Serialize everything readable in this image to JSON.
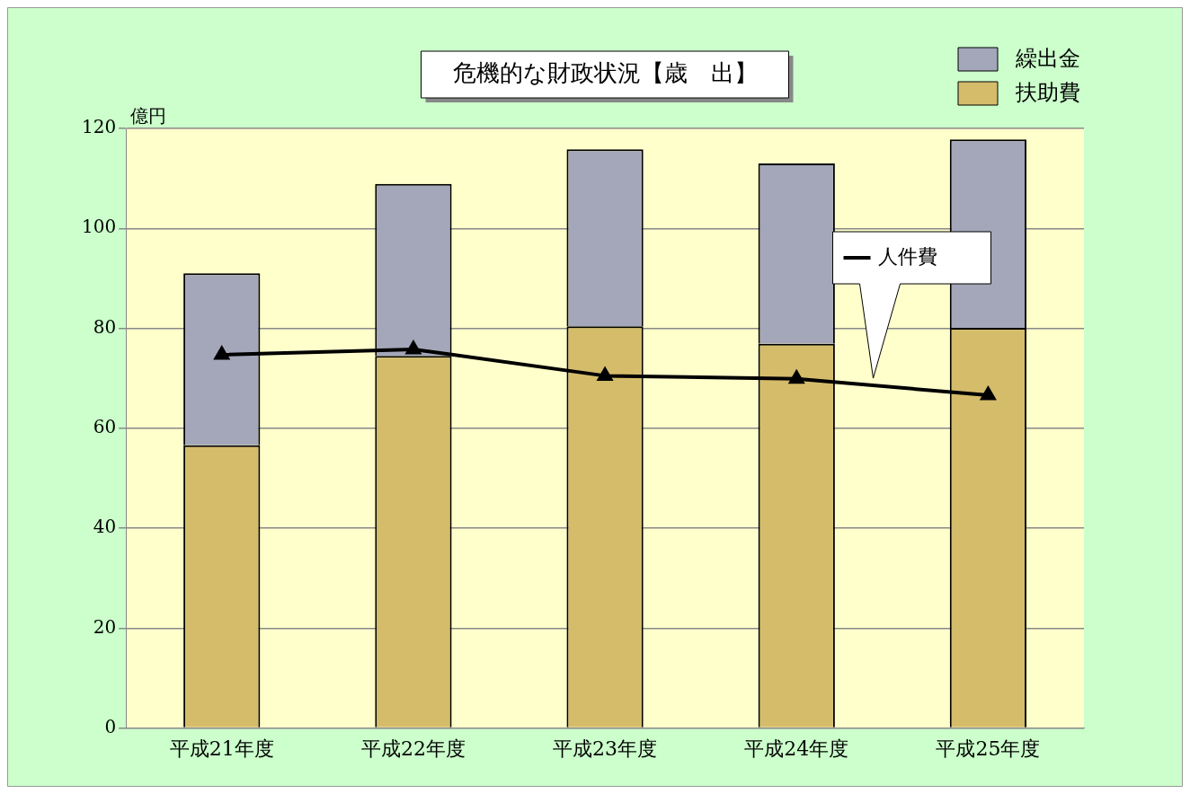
{
  "chart_data": {
    "type": "bar",
    "title": "危機的な財政状況【歳　出】",
    "ylabel": "億円",
    "categories": [
      "平成21年度",
      "平成22年度",
      "平成23年度",
      "平成24年度",
      "平成25年度"
    ],
    "stacked": true,
    "series": [
      {
        "name": "扶助費",
        "color": "#d4bc6a",
        "values": [
          56.6,
          74.5,
          80.4,
          76.9,
          80.1
        ]
      },
      {
        "name": "繰出金",
        "color": "#a3a7b9",
        "values": [
          34.4,
          34.4,
          35.4,
          36.1,
          37.7
        ]
      },
      {
        "name": "人件費",
        "type": "line",
        "color": "#000000",
        "values": [
          74.7,
          75.8,
          70.5,
          69.9,
          66.6
        ]
      }
    ],
    "ylim": [
      0,
      120
    ],
    "yticks": [
      0,
      20,
      40,
      60,
      80,
      100,
      120
    ],
    "grid": "y",
    "legend": "top right",
    "marker": "triangle",
    "line_style": "solid"
  }
}
